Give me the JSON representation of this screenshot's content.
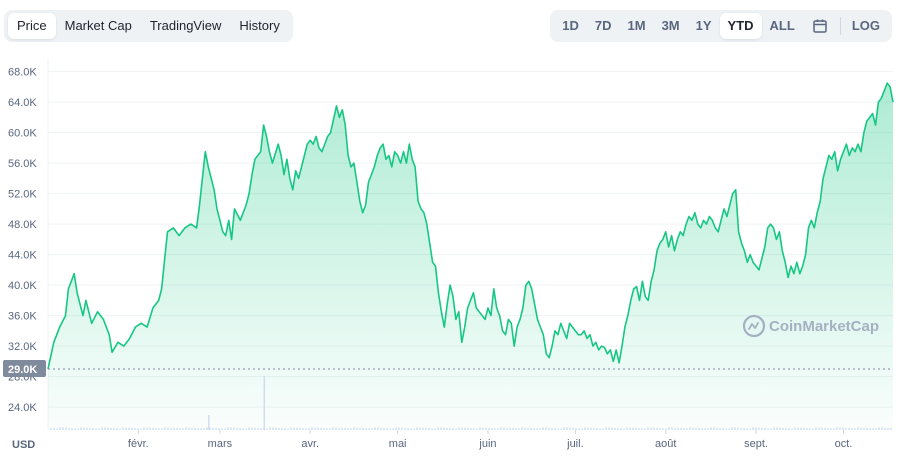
{
  "tabs": [
    "Price",
    "Market Cap",
    "TradingView",
    "History"
  ],
  "active_tab": 0,
  "ranges": [
    "1D",
    "7D",
    "1M",
    "3M",
    "1Y",
    "YTD",
    "ALL"
  ],
  "active_range": "YTD",
  "calendar_icon": "calendar-icon",
  "log_label": "LOG",
  "watermark": "CoinMarketCap",
  "currency": "USD",
  "colors": {
    "line": "#16c784",
    "grid": "#eff2f5",
    "label_bg": "#808a9d"
  },
  "chart_data": {
    "type": "area",
    "title": "",
    "xlabel": "",
    "ylabel": "",
    "y_ticks": [
      "24.0K",
      "28.0K",
      "32.0K",
      "36.0K",
      "40.0K",
      "44.0K",
      "48.0K",
      "52.0K",
      "56.0K",
      "60.0K",
      "64.0K",
      "68.0K"
    ],
    "ylim": [
      21000,
      69000
    ],
    "x_ticks": [
      {
        "label": "févr.",
        "day": 32
      },
      {
        "label": "mars",
        "day": 60
      },
      {
        "label": "avr.",
        "day": 91
      },
      {
        "label": "mai",
        "day": 121
      },
      {
        "label": "juin",
        "day": 152
      },
      {
        "label": "juil.",
        "day": 182
      },
      {
        "label": "août",
        "day": 213
      },
      {
        "label": "sept.",
        "day": 244
      },
      {
        "label": "oct.",
        "day": 274
      }
    ],
    "xlim": [
      1,
      291
    ],
    "start_price_label": "29.0K",
    "start_price": 29000,
    "grid": true,
    "series": [
      {
        "values": [
          [
            1,
            29000
          ],
          [
            3,
            32500
          ],
          [
            5,
            34500
          ],
          [
            7,
            36000
          ],
          [
            8,
            39500
          ],
          [
            10,
            41500
          ],
          [
            11,
            39000
          ],
          [
            13,
            36000
          ],
          [
            14,
            38000
          ],
          [
            16,
            35000
          ],
          [
            18,
            36500
          ],
          [
            20,
            35500
          ],
          [
            22,
            33500
          ],
          [
            23,
            31200
          ],
          [
            25,
            32500
          ],
          [
            27,
            32000
          ],
          [
            29,
            33000
          ],
          [
            31,
            34500
          ],
          [
            33,
            35000
          ],
          [
            35,
            34500
          ],
          [
            37,
            37000
          ],
          [
            39,
            38000
          ],
          [
            40,
            39500
          ],
          [
            42,
            47000
          ],
          [
            44,
            47500
          ],
          [
            46,
            46500
          ],
          [
            48,
            47500
          ],
          [
            50,
            48000
          ],
          [
            52,
            47500
          ],
          [
            53,
            50500
          ],
          [
            55,
            57500
          ],
          [
            56,
            55500
          ],
          [
            58,
            52500
          ],
          [
            59,
            50000
          ],
          [
            60,
            48500
          ],
          [
            61,
            47000
          ],
          [
            62,
            46500
          ],
          [
            63,
            48500
          ],
          [
            64,
            46000
          ],
          [
            65,
            50000
          ],
          [
            67,
            48500
          ],
          [
            69,
            50500
          ],
          [
            70,
            52000
          ],
          [
            71,
            54500
          ],
          [
            72,
            56500
          ],
          [
            74,
            57500
          ],
          [
            75,
            61000
          ],
          [
            76,
            59500
          ],
          [
            77,
            57500
          ],
          [
            78,
            56000
          ],
          [
            80,
            58500
          ],
          [
            81,
            57000
          ],
          [
            82,
            54500
          ],
          [
            83,
            56500
          ],
          [
            84,
            54000
          ],
          [
            85,
            52500
          ],
          [
            86,
            55000
          ],
          [
            87,
            54000
          ],
          [
            88,
            55500
          ],
          [
            89,
            57000
          ],
          [
            90,
            58500
          ],
          [
            91,
            59000
          ],
          [
            92,
            58500
          ],
          [
            93,
            59500
          ],
          [
            94,
            58000
          ],
          [
            95,
            57500
          ],
          [
            96,
            58500
          ],
          [
            97,
            59500
          ],
          [
            98,
            60000
          ],
          [
            100,
            63500
          ],
          [
            101,
            62000
          ],
          [
            102,
            63000
          ],
          [
            103,
            61000
          ],
          [
            104,
            57000
          ],
          [
            105,
            55500
          ],
          [
            106,
            56000
          ],
          [
            107,
            53500
          ],
          [
            108,
            51000
          ],
          [
            109,
            49500
          ],
          [
            110,
            50500
          ],
          [
            111,
            53500
          ],
          [
            112,
            54500
          ],
          [
            113,
            55500
          ],
          [
            114,
            57000
          ],
          [
            115,
            58000
          ],
          [
            116,
            58500
          ],
          [
            117,
            56500
          ],
          [
            118,
            57000
          ],
          [
            119,
            55500
          ],
          [
            120,
            57500
          ],
          [
            121,
            57000
          ],
          [
            122,
            56000
          ],
          [
            123,
            57500
          ],
          [
            124,
            56000
          ],
          [
            125,
            58500
          ],
          [
            126,
            56500
          ],
          [
            127,
            55500
          ],
          [
            128,
            51000
          ],
          [
            129,
            50000
          ],
          [
            130,
            49500
          ],
          [
            131,
            48000
          ],
          [
            132,
            45500
          ],
          [
            133,
            43000
          ],
          [
            134,
            42500
          ],
          [
            135,
            39000
          ],
          [
            136,
            36500
          ],
          [
            137,
            34500
          ],
          [
            138,
            37500
          ],
          [
            139,
            40000
          ],
          [
            140,
            38500
          ],
          [
            141,
            35500
          ],
          [
            142,
            36500
          ],
          [
            143,
            32500
          ],
          [
            144,
            34500
          ],
          [
            145,
            37000
          ],
          [
            146,
            38000
          ],
          [
            147,
            39000
          ],
          [
            148,
            37000
          ],
          [
            149,
            36500
          ],
          [
            150,
            36000
          ],
          [
            151,
            35500
          ],
          [
            152,
            37000
          ],
          [
            153,
            36000
          ],
          [
            154,
            39500
          ],
          [
            155,
            37000
          ],
          [
            156,
            36000
          ],
          [
            157,
            34000
          ],
          [
            158,
            33500
          ],
          [
            159,
            35500
          ],
          [
            160,
            35000
          ],
          [
            161,
            32000
          ],
          [
            162,
            34500
          ],
          [
            163,
            35500
          ],
          [
            164,
            37000
          ],
          [
            165,
            40000
          ],
          [
            166,
            40500
          ],
          [
            167,
            39500
          ],
          [
            168,
            37500
          ],
          [
            169,
            35500
          ],
          [
            170,
            34500
          ],
          [
            171,
            33500
          ],
          [
            172,
            31000
          ],
          [
            173,
            30500
          ],
          [
            174,
            32000
          ],
          [
            175,
            34000
          ],
          [
            176,
            33500
          ],
          [
            177,
            35000
          ],
          [
            178,
            34000
          ],
          [
            179,
            33000
          ],
          [
            180,
            35000
          ],
          [
            181,
            34500
          ],
          [
            182,
            34000
          ],
          [
            183,
            33500
          ],
          [
            184,
            33500
          ],
          [
            185,
            34000
          ],
          [
            186,
            33000
          ],
          [
            187,
            33500
          ],
          [
            188,
            32000
          ],
          [
            189,
            32500
          ],
          [
            190,
            31500
          ],
          [
            191,
            32000
          ],
          [
            192,
            31800
          ],
          [
            193,
            31000
          ],
          [
            194,
            31500
          ],
          [
            195,
            30000
          ],
          [
            196,
            31500
          ],
          [
            197,
            29800
          ],
          [
            198,
            32000
          ],
          [
            199,
            34500
          ],
          [
            200,
            36000
          ],
          [
            201,
            38000
          ],
          [
            202,
            39500
          ],
          [
            203,
            39800
          ],
          [
            204,
            38000
          ],
          [
            205,
            40500
          ],
          [
            206,
            38500
          ],
          [
            207,
            38000
          ],
          [
            208,
            40500
          ],
          [
            209,
            42000
          ],
          [
            210,
            44500
          ],
          [
            211,
            45500
          ],
          [
            212,
            46000
          ],
          [
            213,
            47000
          ],
          [
            214,
            45000
          ],
          [
            215,
            46500
          ],
          [
            216,
            44500
          ],
          [
            217,
            46000
          ],
          [
            218,
            47000
          ],
          [
            219,
            46500
          ],
          [
            220,
            48000
          ],
          [
            221,
            49000
          ],
          [
            222,
            48500
          ],
          [
            223,
            49500
          ],
          [
            224,
            48000
          ],
          [
            225,
            47500
          ],
          [
            226,
            48500
          ],
          [
            227,
            48000
          ],
          [
            228,
            49000
          ],
          [
            229,
            48500
          ],
          [
            230,
            47500
          ],
          [
            231,
            47000
          ],
          [
            232,
            48500
          ],
          [
            233,
            50000
          ],
          [
            234,
            49000
          ],
          [
            235,
            50500
          ],
          [
            236,
            52000
          ],
          [
            237,
            52500
          ],
          [
            238,
            47000
          ],
          [
            239,
            45500
          ],
          [
            240,
            44500
          ],
          [
            241,
            43000
          ],
          [
            242,
            44000
          ],
          [
            243,
            43000
          ],
          [
            244,
            42500
          ],
          [
            245,
            42000
          ],
          [
            246,
            43500
          ],
          [
            247,
            45000
          ],
          [
            248,
            47500
          ],
          [
            249,
            48000
          ],
          [
            250,
            47500
          ],
          [
            251,
            46000
          ],
          [
            252,
            47000
          ],
          [
            253,
            44500
          ],
          [
            254,
            43000
          ],
          [
            255,
            41000
          ],
          [
            256,
            42500
          ],
          [
            257,
            41500
          ],
          [
            258,
            43000
          ],
          [
            259,
            41500
          ],
          [
            260,
            42500
          ],
          [
            261,
            44000
          ],
          [
            262,
            47500
          ],
          [
            263,
            48500
          ],
          [
            264,
            47500
          ],
          [
            265,
            49500
          ],
          [
            266,
            51000
          ],
          [
            267,
            54000
          ],
          [
            268,
            55500
          ],
          [
            269,
            57000
          ],
          [
            270,
            56500
          ],
          [
            271,
            57500
          ],
          [
            272,
            55000
          ],
          [
            273,
            56500
          ],
          [
            274,
            57500
          ],
          [
            275,
            58500
          ],
          [
            276,
            57000
          ],
          [
            277,
            58000
          ],
          [
            278,
            57500
          ],
          [
            279,
            58500
          ],
          [
            280,
            57500
          ],
          [
            281,
            60000
          ],
          [
            282,
            61500
          ],
          [
            283,
            62000
          ],
          [
            284,
            62500
          ],
          [
            285,
            61000
          ],
          [
            286,
            64000
          ],
          [
            287,
            64500
          ],
          [
            288,
            65500
          ],
          [
            289,
            66500
          ],
          [
            290,
            66000
          ],
          [
            291,
            64000
          ]
        ]
      }
    ]
  }
}
